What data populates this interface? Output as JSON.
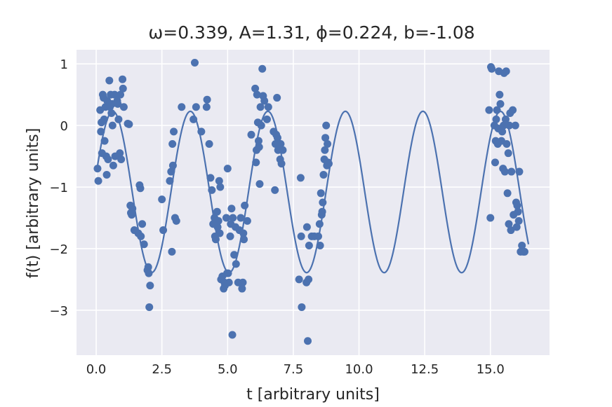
{
  "chart_data": {
    "type": "scatter",
    "title": "ω=0.339, A=1.31, ϕ=0.224, b=-1.08",
    "xlabel": "t [arbitrary units]",
    "ylabel": "f(t) [arbitrary units]",
    "xlim": [
      -0.75,
      17.25
    ],
    "ylim": [
      -3.73,
      1.23
    ],
    "xticks": [
      0.0,
      2.5,
      5.0,
      7.5,
      10.0,
      12.5,
      15.0
    ],
    "xtick_labels": [
      "0.0",
      "2.5",
      "5.0",
      "7.5",
      "10.0",
      "12.5",
      "15.0"
    ],
    "yticks": [
      -3,
      -2,
      -1,
      0,
      1
    ],
    "ytick_labels": [
      "−3",
      "−2",
      "−1",
      "0",
      "1"
    ],
    "grid": true,
    "background_color": "#eaeaf2",
    "series_color": "#4c72b0",
    "fit": {
      "model": "A*sin(2*pi*omega*t + phi) + b",
      "omega": 0.339,
      "A": 1.31,
      "phi": 0.224,
      "b": -1.08,
      "t_range": [
        0.05,
        16.45
      ]
    },
    "points": [
      [
        0.05,
        -0.7
      ],
      [
        0.08,
        -0.9
      ],
      [
        0.15,
        0.25
      ],
      [
        0.18,
        -0.1
      ],
      [
        0.2,
        0.05
      ],
      [
        0.22,
        -0.45
      ],
      [
        0.25,
        0.5
      ],
      [
        0.28,
        0.45
      ],
      [
        0.3,
        0.1
      ],
      [
        0.32,
        -0.25
      ],
      [
        0.35,
        0.3
      ],
      [
        0.38,
        -0.5
      ],
      [
        0.4,
        -0.8
      ],
      [
        0.42,
        0.4
      ],
      [
        0.45,
        -0.55
      ],
      [
        0.5,
        0.73
      ],
      [
        0.52,
        0.3
      ],
      [
        0.55,
        0.5
      ],
      [
        0.58,
        0.2
      ],
      [
        0.6,
        0.35
      ],
      [
        0.62,
        0.0
      ],
      [
        0.65,
        -0.65
      ],
      [
        0.7,
        0.5
      ],
      [
        0.72,
        -0.5
      ],
      [
        0.8,
        0.4
      ],
      [
        0.82,
        0.35
      ],
      [
        0.85,
        0.1
      ],
      [
        0.9,
        -0.45
      ],
      [
        0.92,
        0.5
      ],
      [
        0.95,
        -0.55
      ],
      [
        1.0,
        0.75
      ],
      [
        1.02,
        0.6
      ],
      [
        1.05,
        0.3
      ],
      [
        1.2,
        0.03
      ],
      [
        1.25,
        0.02
      ],
      [
        1.3,
        -1.3
      ],
      [
        1.32,
        -1.42
      ],
      [
        1.35,
        -1.45
      ],
      [
        1.38,
        -1.35
      ],
      [
        1.45,
        -1.7
      ],
      [
        1.6,
        -1.75
      ],
      [
        1.65,
        -0.97
      ],
      [
        1.68,
        -1.02
      ],
      [
        1.7,
        -1.8
      ],
      [
        1.75,
        -1.6
      ],
      [
        1.82,
        -1.93
      ],
      [
        1.95,
        -2.35
      ],
      [
        1.98,
        -2.3
      ],
      [
        2.0,
        -2.4
      ],
      [
        2.02,
        -2.95
      ],
      [
        2.05,
        -2.6
      ],
      [
        2.5,
        -1.2
      ],
      [
        2.55,
        -1.7
      ],
      [
        2.8,
        -0.9
      ],
      [
        2.85,
        -0.75
      ],
      [
        2.88,
        -2.05
      ],
      [
        2.9,
        -0.3
      ],
      [
        2.92,
        -0.65
      ],
      [
        2.95,
        -0.1
      ],
      [
        3.0,
        -1.5
      ],
      [
        3.05,
        -1.55
      ],
      [
        3.25,
        0.3
      ],
      [
        3.7,
        0.1
      ],
      [
        3.75,
        1.02
      ],
      [
        3.8,
        0.3
      ],
      [
        4.0,
        -0.1
      ],
      [
        4.2,
        0.3
      ],
      [
        4.22,
        0.42
      ],
      [
        4.3,
        -0.3
      ],
      [
        4.35,
        -0.85
      ],
      [
        4.4,
        -1.05
      ],
      [
        4.45,
        -1.6
      ],
      [
        4.5,
        -1.5
      ],
      [
        4.52,
        -1.8
      ],
      [
        4.55,
        -1.85
      ],
      [
        4.6,
        -1.4
      ],
      [
        4.62,
        -1.65
      ],
      [
        4.65,
        -1.55
      ],
      [
        4.68,
        -0.9
      ],
      [
        4.7,
        -1.75
      ],
      [
        4.72,
        -1.0
      ],
      [
        4.75,
        -2.5
      ],
      [
        4.8,
        -2.45
      ],
      [
        4.85,
        -2.65
      ],
      [
        4.88,
        -2.55
      ],
      [
        4.9,
        -2.6
      ],
      [
        4.95,
        -1.5
      ],
      [
        4.98,
        -2.4
      ],
      [
        5.0,
        -0.7
      ],
      [
        5.02,
        -2.4
      ],
      [
        5.05,
        -2.55
      ],
      [
        5.1,
        -1.8
      ],
      [
        5.12,
        -1.6
      ],
      [
        5.15,
        -1.35
      ],
      [
        5.18,
        -3.4
      ],
      [
        5.2,
        -1.5
      ],
      [
        5.25,
        -2.1
      ],
      [
        5.3,
        -1.65
      ],
      [
        5.32,
        -2.25
      ],
      [
        5.4,
        -2.55
      ],
      [
        5.45,
        -1.7
      ],
      [
        5.5,
        -1.5
      ],
      [
        5.55,
        -2.65
      ],
      [
        5.58,
        -2.55
      ],
      [
        5.6,
        -1.75
      ],
      [
        5.62,
        -1.85
      ],
      [
        5.65,
        -1.3
      ],
      [
        5.75,
        -1.55
      ],
      [
        5.9,
        -0.15
      ],
      [
        6.05,
        0.6
      ],
      [
        6.08,
        -0.6
      ],
      [
        6.1,
        -0.4
      ],
      [
        6.12,
        0.5
      ],
      [
        6.15,
        0.05
      ],
      [
        6.18,
        -0.25
      ],
      [
        6.2,
        -0.35
      ],
      [
        6.22,
        -0.95
      ],
      [
        6.25,
        0.3
      ],
      [
        6.28,
        0.0
      ],
      [
        6.32,
        0.92
      ],
      [
        6.35,
        0.48
      ],
      [
        6.4,
        0.4
      ],
      [
        6.5,
        0.1
      ],
      [
        6.55,
        0.3
      ],
      [
        6.75,
        -0.1
      ],
      [
        6.8,
        -1.05
      ],
      [
        6.82,
        -0.3
      ],
      [
        6.85,
        -0.15
      ],
      [
        6.88,
        0.45
      ],
      [
        6.9,
        -0.2
      ],
      [
        6.92,
        -0.4
      ],
      [
        7.0,
        -0.55
      ],
      [
        7.02,
        -0.3
      ],
      [
        7.05,
        -0.62
      ],
      [
        7.1,
        -0.4
      ],
      [
        7.72,
        -2.5
      ],
      [
        7.78,
        -0.85
      ],
      [
        7.8,
        -1.8
      ],
      [
        7.82,
        -2.95
      ],
      [
        8.0,
        -2.55
      ],
      [
        8.02,
        -1.65
      ],
      [
        8.05,
        -3.5
      ],
      [
        8.08,
        -2.5
      ],
      [
        8.1,
        -1.95
      ],
      [
        8.2,
        -1.8
      ],
      [
        8.3,
        -1.8
      ],
      [
        8.45,
        -1.8
      ],
      [
        8.5,
        -1.6
      ],
      [
        8.52,
        -1.95
      ],
      [
        8.55,
        -1.1
      ],
      [
        8.58,
        -1.45
      ],
      [
        8.6,
        -1.4
      ],
      [
        8.62,
        -1.25
      ],
      [
        8.65,
        -0.8
      ],
      [
        8.68,
        -0.55
      ],
      [
        8.7,
        -0.4
      ],
      [
        8.72,
        -0.2
      ],
      [
        8.75,
        0.0
      ],
      [
        8.78,
        -0.65
      ],
      [
        8.8,
        -0.3
      ],
      [
        8.82,
        -0.6
      ],
      [
        8.85,
        -0.62
      ],
      [
        14.95,
        0.25
      ],
      [
        15.0,
        -1.5
      ],
      [
        15.02,
        0.95
      ],
      [
        15.05,
        0.92
      ],
      [
        15.15,
        0.0
      ],
      [
        15.18,
        -0.6
      ],
      [
        15.2,
        -0.25
      ],
      [
        15.22,
        0.1
      ],
      [
        15.25,
        0.25
      ],
      [
        15.28,
        -0.3
      ],
      [
        15.3,
        -0.05
      ],
      [
        15.32,
        0.88
      ],
      [
        15.35,
        0.5
      ],
      [
        15.38,
        0.35
      ],
      [
        15.4,
        -0.05
      ],
      [
        15.42,
        -0.25
      ],
      [
        15.45,
        -0.1
      ],
      [
        15.48,
        -0.7
      ],
      [
        15.5,
        0.0
      ],
      [
        15.52,
        0.85
      ],
      [
        15.55,
        -0.75
      ],
      [
        15.58,
        0.1
      ],
      [
        15.6,
        0.88
      ],
      [
        15.62,
        -0.3
      ],
      [
        15.65,
        -1.1
      ],
      [
        15.68,
        -0.45
      ],
      [
        15.7,
        -1.6
      ],
      [
        15.72,
        0.0
      ],
      [
        15.75,
        0.2
      ],
      [
        15.78,
        -1.7
      ],
      [
        15.8,
        -0.75
      ],
      [
        15.85,
        0.25
      ],
      [
        15.88,
        -1.45
      ],
      [
        15.95,
        0.0
      ],
      [
        15.98,
        -1.25
      ],
      [
        16.0,
        -1.65
      ],
      [
        16.02,
        -1.3
      ],
      [
        16.05,
        -1.4
      ],
      [
        16.08,
        -1.55
      ],
      [
        16.1,
        -0.75
      ],
      [
        16.15,
        -2.05
      ],
      [
        16.2,
        -1.95
      ],
      [
        16.25,
        -2.05
      ],
      [
        16.3,
        -2.05
      ]
    ]
  }
}
